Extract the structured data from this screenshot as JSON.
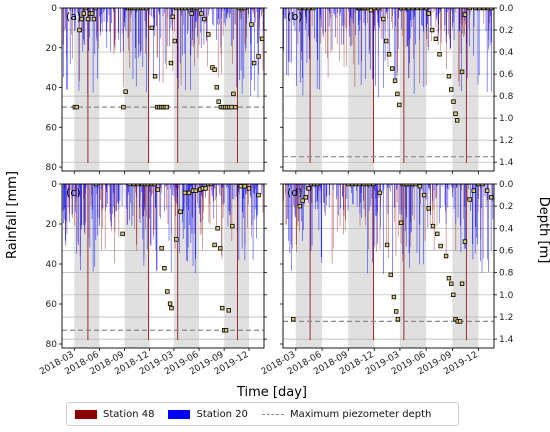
{
  "figure": {
    "ylabel_left": "Rainfall [mm]",
    "ylabel_right": "Depth [m]",
    "xlabel": "Time [day]",
    "x_tick_labels": [
      "2018-03",
      "2018-06",
      "2018-09",
      "2018-12",
      "2019-03",
      "2019-06",
      "2019-09",
      "2019-12"
    ],
    "rain_ticks": [
      "0",
      "20",
      "40",
      "60",
      "80"
    ],
    "depth_ticks": [
      "0.0",
      "0.2",
      "0.4",
      "0.6",
      "0.8",
      "1.0",
      "1.2",
      "1.4"
    ]
  },
  "legend": {
    "station48": "Station 48",
    "station20": "Station 20",
    "maxdepth": "Maximum piezometer depth"
  },
  "colors": {
    "station48": "#8b0000",
    "station20": "#0000ff",
    "maxdepth_line": "#888888",
    "shade": "#e0e0e0",
    "marker_face": "#d9c77a",
    "marker_edge": "#000000"
  },
  "chart_data": [
    {
      "type": "scatter",
      "label": "(a)",
      "xlim": [
        "2018-01-15",
        "2020-01-25"
      ],
      "rain_ylim": [
        82,
        0
      ],
      "depth_ylim": [
        1.48,
        0.0
      ],
      "shaded_periods": [
        [
          "2018-03-01",
          "2018-06-01"
        ],
        [
          "2018-09-01",
          "2018-12-01"
        ],
        [
          "2019-03-01",
          "2019-06-01"
        ],
        [
          "2019-09-01",
          "2019-12-01"
        ]
      ],
      "max_piezometer_depth": 0.9,
      "depth": [
        {
          "x": "2018-03-03",
          "y": 0.9
        },
        {
          "x": "2018-03-10",
          "y": 0.9
        },
        {
          "x": "2018-03-20",
          "y": 0.2
        },
        {
          "x": "2018-03-28",
          "y": 0.1
        },
        {
          "x": "2018-04-05",
          "y": 0.05
        },
        {
          "x": "2018-04-12",
          "y": 0.0
        },
        {
          "x": "2018-04-20",
          "y": 0.1
        },
        {
          "x": "2018-04-28",
          "y": 0.05
        },
        {
          "x": "2018-05-05",
          "y": 0.05
        },
        {
          "x": "2018-05-12",
          "y": 0.1
        },
        {
          "x": "2018-05-18",
          "y": 0.0
        },
        {
          "x": "2018-08-28",
          "y": 0.9
        },
        {
          "x": "2018-09-05",
          "y": 0.76
        },
        {
          "x": "2018-09-15",
          "y": 0.0
        },
        {
          "x": "2018-09-22",
          "y": 0.0
        },
        {
          "x": "2018-09-30",
          "y": 0.0
        },
        {
          "x": "2018-10-08",
          "y": 0.0
        },
        {
          "x": "2018-10-20",
          "y": 0.0
        },
        {
          "x": "2018-11-01",
          "y": 0.0
        },
        {
          "x": "2018-11-10",
          "y": 0.0
        },
        {
          "x": "2018-11-20",
          "y": 0.0
        },
        {
          "x": "2018-12-10",
          "y": 0.18
        },
        {
          "x": "2018-12-22",
          "y": 0.62
        },
        {
          "x": "2018-12-30",
          "y": 0.9
        },
        {
          "x": "2019-01-06",
          "y": 0.9
        },
        {
          "x": "2019-01-13",
          "y": 0.9
        },
        {
          "x": "2019-01-20",
          "y": 0.9
        },
        {
          "x": "2019-01-27",
          "y": 0.9
        },
        {
          "x": "2019-02-03",
          "y": 0.9
        },
        {
          "x": "2019-02-18",
          "y": 0.5
        },
        {
          "x": "2019-02-25",
          "y": 0.08
        },
        {
          "x": "2019-03-04",
          "y": 0.3
        },
        {
          "x": "2019-03-10",
          "y": 0.0
        },
        {
          "x": "2019-03-20",
          "y": 0.0
        },
        {
          "x": "2019-04-01",
          "y": 0.0
        },
        {
          "x": "2019-04-12",
          "y": 0.0
        },
        {
          "x": "2019-04-25",
          "y": 0.0
        },
        {
          "x": "2019-05-05",
          "y": 0.05
        },
        {
          "x": "2019-05-15",
          "y": 0.0
        },
        {
          "x": "2019-05-25",
          "y": 0.0
        },
        {
          "x": "2019-06-10",
          "y": 0.05
        },
        {
          "x": "2019-06-20",
          "y": 0.1
        },
        {
          "x": "2019-07-05",
          "y": 0.24
        },
        {
          "x": "2019-07-20",
          "y": 0.54
        },
        {
          "x": "2019-07-28",
          "y": 0.56
        },
        {
          "x": "2019-08-05",
          "y": 0.72
        },
        {
          "x": "2019-08-12",
          "y": 0.85
        },
        {
          "x": "2019-08-20",
          "y": 0.9
        },
        {
          "x": "2019-08-28",
          "y": 0.9
        },
        {
          "x": "2019-09-05",
          "y": 0.9
        },
        {
          "x": "2019-09-12",
          "y": 0.9
        },
        {
          "x": "2019-09-20",
          "y": 0.9
        },
        {
          "x": "2019-09-28",
          "y": 0.9
        },
        {
          "x": "2019-10-05",
          "y": 0.78
        },
        {
          "x": "2019-10-12",
          "y": 0.9
        },
        {
          "x": "2019-10-25",
          "y": 0.0
        },
        {
          "x": "2019-11-05",
          "y": 0.0
        },
        {
          "x": "2019-11-15",
          "y": 0.0
        },
        {
          "x": "2019-12-10",
          "y": 0.15
        },
        {
          "x": "2019-12-20",
          "y": 0.5
        },
        {
          "x": "2020-01-05",
          "y": 0.44
        },
        {
          "x": "2020-01-18",
          "y": 0.28
        }
      ]
    },
    {
      "type": "scatter",
      "label": "(b)",
      "xlim": [
        "2018-01-15",
        "2020-01-25"
      ],
      "rain_ylim": [
        82,
        0
      ],
      "depth_ylim": [
        1.48,
        0.0
      ],
      "shaded_periods": [
        [
          "2018-03-01",
          "2018-06-01"
        ],
        [
          "2018-09-01",
          "2018-12-01"
        ],
        [
          "2019-03-01",
          "2019-06-01"
        ],
        [
          "2019-09-01",
          "2019-12-01"
        ]
      ],
      "max_piezometer_depth": 1.35,
      "depth": [
        {
          "x": "2018-03-15",
          "y": 0.0
        },
        {
          "x": "2018-04-01",
          "y": 0.0
        },
        {
          "x": "2018-04-15",
          "y": 0.0
        },
        {
          "x": "2018-05-01",
          "y": 0.0
        },
        {
          "x": "2018-10-05",
          "y": 0.0
        },
        {
          "x": "2018-10-10",
          "y": 0.0
        },
        {
          "x": "2018-10-15",
          "y": 0.0
        },
        {
          "x": "2018-10-20",
          "y": 0.0
        },
        {
          "x": "2018-10-25",
          "y": 0.0
        },
        {
          "x": "2018-11-01",
          "y": 0.0
        },
        {
          "x": "2018-11-10",
          "y": 0.0
        },
        {
          "x": "2018-11-20",
          "y": 0.02
        },
        {
          "x": "2018-12-01",
          "y": 0.0
        },
        {
          "x": "2018-12-15",
          "y": 0.0
        },
        {
          "x": "2019-01-02",
          "y": 0.1
        },
        {
          "x": "2019-01-12",
          "y": 0.3
        },
        {
          "x": "2019-01-22",
          "y": 0.42
        },
        {
          "x": "2019-02-02",
          "y": 0.55
        },
        {
          "x": "2019-02-12",
          "y": 0.66
        },
        {
          "x": "2019-02-20",
          "y": 0.78
        },
        {
          "x": "2019-02-27",
          "y": 0.88
        },
        {
          "x": "2019-03-05",
          "y": 0.0
        },
        {
          "x": "2019-03-15",
          "y": 0.0
        },
        {
          "x": "2019-04-01",
          "y": 0.0
        },
        {
          "x": "2019-04-15",
          "y": 0.0
        },
        {
          "x": "2019-05-01",
          "y": 0.0
        },
        {
          "x": "2019-05-15",
          "y": 0.0
        },
        {
          "x": "2019-06-01",
          "y": 0.0
        },
        {
          "x": "2019-06-10",
          "y": 0.05
        },
        {
          "x": "2019-06-22",
          "y": 0.2
        },
        {
          "x": "2019-07-05",
          "y": 0.28
        },
        {
          "x": "2019-07-18",
          "y": 0.42
        },
        {
          "x": "2019-08-20",
          "y": 0.62
        },
        {
          "x": "2019-08-28",
          "y": 0.74
        },
        {
          "x": "2019-09-05",
          "y": 0.85
        },
        {
          "x": "2019-09-12",
          "y": 0.96
        },
        {
          "x": "2019-09-18",
          "y": 1.02
        },
        {
          "x": "2019-10-05",
          "y": 0.58
        },
        {
          "x": "2019-10-15",
          "y": 0.06
        },
        {
          "x": "2019-11-01",
          "y": 0.0
        },
        {
          "x": "2019-11-20",
          "y": 0.0
        },
        {
          "x": "2019-12-05",
          "y": 0.0
        },
        {
          "x": "2019-12-20",
          "y": 0.0
        },
        {
          "x": "2020-01-05",
          "y": 0.0
        },
        {
          "x": "2020-01-15",
          "y": 0.0
        }
      ]
    },
    {
      "type": "scatter",
      "label": "(c)",
      "xlim": [
        "2018-01-15",
        "2020-01-25"
      ],
      "rain_ylim": [
        82,
        0
      ],
      "depth_ylim": [
        1.48,
        0.0
      ],
      "shaded_periods": [
        [
          "2018-03-01",
          "2018-06-01"
        ],
        [
          "2018-09-01",
          "2018-12-01"
        ],
        [
          "2019-03-01",
          "2019-06-01"
        ],
        [
          "2019-09-01",
          "2019-12-01"
        ]
      ],
      "max_piezometer_depth": 1.32,
      "depth": [
        {
          "x": "2018-05-20",
          "y": 0.0
        },
        {
          "x": "2018-08-25",
          "y": 0.45
        },
        {
          "x": "2018-09-20",
          "y": 0.0
        },
        {
          "x": "2018-10-05",
          "y": 0.0
        },
        {
          "x": "2018-10-20",
          "y": 0.0
        },
        {
          "x": "2018-11-05",
          "y": 0.0
        },
        {
          "x": "2018-11-15",
          "y": 0.0
        },
        {
          "x": "2018-11-25",
          "y": 0.0
        },
        {
          "x": "2018-12-10",
          "y": 0.0
        },
        {
          "x": "2018-12-20",
          "y": 0.0
        },
        {
          "x": "2019-01-01",
          "y": 0.05
        },
        {
          "x": "2019-01-15",
          "y": 0.58
        },
        {
          "x": "2019-01-25",
          "y": 0.76
        },
        {
          "x": "2019-02-05",
          "y": 0.97
        },
        {
          "x": "2019-02-15",
          "y": 1.08
        },
        {
          "x": "2019-02-20",
          "y": 1.12
        },
        {
          "x": "2019-03-10",
          "y": 0.5
        },
        {
          "x": "2019-03-25",
          "y": 0.25
        },
        {
          "x": "2019-04-10",
          "y": 0.08
        },
        {
          "x": "2019-04-25",
          "y": 0.08
        },
        {
          "x": "2019-05-10",
          "y": 0.06
        },
        {
          "x": "2019-05-20",
          "y": 0.06
        },
        {
          "x": "2019-06-05",
          "y": 0.05
        },
        {
          "x": "2019-06-15",
          "y": 0.04
        },
        {
          "x": "2019-06-25",
          "y": 0.04
        },
        {
          "x": "2019-07-05",
          "y": 0.0
        },
        {
          "x": "2019-07-15",
          "y": 0.0
        },
        {
          "x": "2019-07-28",
          "y": 0.55
        },
        {
          "x": "2019-08-08",
          "y": 0.4
        },
        {
          "x": "2019-08-18",
          "y": 0.58
        },
        {
          "x": "2019-08-25",
          "y": 1.12
        },
        {
          "x": "2019-09-01",
          "y": 1.32
        },
        {
          "x": "2019-09-08",
          "y": 1.32
        },
        {
          "x": "2019-09-18",
          "y": 1.14
        },
        {
          "x": "2019-10-01",
          "y": 0.38
        },
        {
          "x": "2019-11-01",
          "y": 0.02
        },
        {
          "x": "2019-11-15",
          "y": 0.02
        },
        {
          "x": "2019-12-01",
          "y": 0.04
        },
        {
          "x": "2020-01-05",
          "y": 0.1
        }
      ]
    },
    {
      "type": "scatter",
      "label": "(d)",
      "xlim": [
        "2018-01-15",
        "2020-01-25"
      ],
      "rain_ylim": [
        82,
        0
      ],
      "depth_ylim": [
        1.48,
        0.0
      ],
      "shaded_periods": [
        [
          "2018-03-01",
          "2018-06-01"
        ],
        [
          "2018-09-01",
          "2018-12-01"
        ],
        [
          "2019-03-01",
          "2019-06-01"
        ],
        [
          "2019-09-01",
          "2019-12-01"
        ]
      ],
      "max_piezometer_depth": 1.24,
      "depth": [
        {
          "x": "2018-02-20",
          "y": 1.22
        },
        {
          "x": "2018-03-15",
          "y": 0.2
        },
        {
          "x": "2018-03-25",
          "y": 0.15
        },
        {
          "x": "2018-04-05",
          "y": 0.12
        },
        {
          "x": "2018-04-15",
          "y": 0.04
        },
        {
          "x": "2018-04-25",
          "y": 0.0
        },
        {
          "x": "2018-05-05",
          "y": 0.0
        },
        {
          "x": "2018-05-15",
          "y": 0.0
        },
        {
          "x": "2018-09-01",
          "y": 0.0
        },
        {
          "x": "2018-09-15",
          "y": 0.0
        },
        {
          "x": "2018-09-28",
          "y": 0.0
        },
        {
          "x": "2018-10-10",
          "y": 0.0
        },
        {
          "x": "2018-10-25",
          "y": 0.0
        },
        {
          "x": "2018-11-05",
          "y": 0.0
        },
        {
          "x": "2018-11-15",
          "y": 0.0
        },
        {
          "x": "2018-11-28",
          "y": 0.0
        },
        {
          "x": "2018-12-20",
          "y": 0.08
        },
        {
          "x": "2019-01-15",
          "y": 0.55
        },
        {
          "x": "2019-01-28",
          "y": 0.82
        },
        {
          "x": "2019-02-08",
          "y": 1.02
        },
        {
          "x": "2019-02-16",
          "y": 1.15
        },
        {
          "x": "2019-02-22",
          "y": 1.22
        },
        {
          "x": "2019-03-05",
          "y": 0.35
        },
        {
          "x": "2019-03-15",
          "y": 0.0
        },
        {
          "x": "2019-03-25",
          "y": 0.0
        },
        {
          "x": "2019-04-05",
          "y": 0.0
        },
        {
          "x": "2019-04-15",
          "y": 0.0
        },
        {
          "x": "2019-04-25",
          "y": 0.0
        },
        {
          "x": "2019-05-10",
          "y": 0.02
        },
        {
          "x": "2019-05-25",
          "y": 0.1
        },
        {
          "x": "2019-06-10",
          "y": 0.22
        },
        {
          "x": "2019-06-25",
          "y": 0.38
        },
        {
          "x": "2019-07-10",
          "y": 0.45
        },
        {
          "x": "2019-07-22",
          "y": 0.56
        },
        {
          "x": "2019-08-10",
          "y": 0.65
        },
        {
          "x": "2019-08-20",
          "y": 0.85
        },
        {
          "x": "2019-08-28",
          "y": 0.9
        },
        {
          "x": "2019-09-04",
          "y": 1.0
        },
        {
          "x": "2019-09-12",
          "y": 1.22
        },
        {
          "x": "2019-09-20",
          "y": 1.24
        },
        {
          "x": "2019-09-28",
          "y": 1.24
        },
        {
          "x": "2019-10-05",
          "y": 0.9
        },
        {
          "x": "2019-10-15",
          "y": 0.52
        },
        {
          "x": "2019-11-01",
          "y": 0.14
        },
        {
          "x": "2019-11-15",
          "y": 0.06
        },
        {
          "x": "2019-12-01",
          "y": 0.0
        },
        {
          "x": "2019-12-15",
          "y": 0.0
        },
        {
          "x": "2020-01-01",
          "y": 0.06
        },
        {
          "x": "2020-01-15",
          "y": 0.12
        }
      ]
    }
  ]
}
